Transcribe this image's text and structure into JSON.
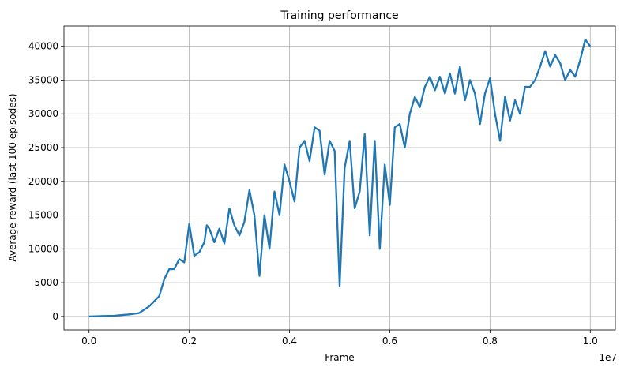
{
  "chart_data": {
    "type": "line",
    "title": "Training performance",
    "xlabel": "Frame",
    "ylabel": "Average reward (last 100 episodes)",
    "x_multiplier_label": "1e7",
    "xlim": [
      -0.05,
      1.05
    ],
    "ylim": [
      -2000,
      43000
    ],
    "x_ticks": [
      0.0,
      0.2,
      0.4,
      0.6,
      0.8,
      1.0
    ],
    "x_tick_labels": [
      "0.0",
      "0.2",
      "0.4",
      "0.6",
      "0.8",
      "1.0"
    ],
    "y_ticks": [
      0,
      5000,
      10000,
      15000,
      20000,
      25000,
      30000,
      35000,
      40000
    ],
    "y_tick_labels": [
      "0",
      "5000",
      "10000",
      "15000",
      "20000",
      "25000",
      "30000",
      "35000",
      "40000"
    ],
    "grid": true,
    "line_color": "#1f77b4",
    "series": [
      {
        "x": [
          0.0,
          0.02,
          0.05,
          0.08,
          0.1,
          0.12,
          0.14,
          0.15,
          0.16,
          0.17,
          0.18,
          0.19,
          0.2,
          0.21,
          0.22,
          0.23,
          0.235,
          0.24,
          0.25,
          0.26,
          0.27,
          0.28,
          0.29,
          0.3,
          0.31,
          0.32,
          0.33,
          0.34,
          0.35,
          0.36,
          0.37,
          0.38,
          0.39,
          0.4,
          0.41,
          0.42,
          0.43,
          0.44,
          0.45,
          0.46,
          0.47,
          0.48,
          0.49,
          0.5,
          0.51,
          0.52,
          0.53,
          0.54,
          0.55,
          0.56,
          0.57,
          0.58,
          0.59,
          0.6,
          0.61,
          0.62,
          0.63,
          0.64,
          0.65,
          0.66,
          0.67,
          0.68,
          0.69,
          0.7,
          0.71,
          0.72,
          0.73,
          0.74,
          0.75,
          0.76,
          0.77,
          0.78,
          0.79,
          0.8,
          0.81,
          0.82,
          0.83,
          0.84,
          0.85,
          0.86,
          0.87,
          0.88,
          0.89,
          0.9,
          0.91,
          0.92,
          0.93,
          0.94,
          0.95,
          0.96,
          0.97,
          0.98,
          0.99,
          1.0
        ],
        "y": [
          0,
          50,
          100,
          300,
          500,
          1500,
          3000,
          5500,
          7000,
          7000,
          8500,
          8000,
          13700,
          9000,
          9500,
          11000,
          13500,
          13000,
          11000,
          13000,
          10800,
          16000,
          13500,
          12000,
          14000,
          18700,
          15000,
          6000,
          15000,
          10000,
          18500,
          15000,
          22500,
          20000,
          17000,
          25000,
          26000,
          23000,
          28000,
          27500,
          21000,
          26000,
          24500,
          4500,
          22000,
          26000,
          16000,
          18500,
          27000,
          12000,
          26000,
          10000,
          22500,
          16500,
          28000,
          28500,
          25000,
          30000,
          32500,
          31000,
          34000,
          35500,
          33500,
          35500,
          33000,
          36000,
          33000,
          37000,
          32000,
          35000,
          33000,
          28500,
          33000,
          35300,
          30000,
          26000,
          32500,
          29000,
          32000,
          30000,
          34000,
          34000,
          35000,
          37000,
          39300,
          37000,
          38700,
          37500,
          35000,
          36500,
          35500,
          38000,
          41000,
          40000
        ]
      }
    ]
  }
}
